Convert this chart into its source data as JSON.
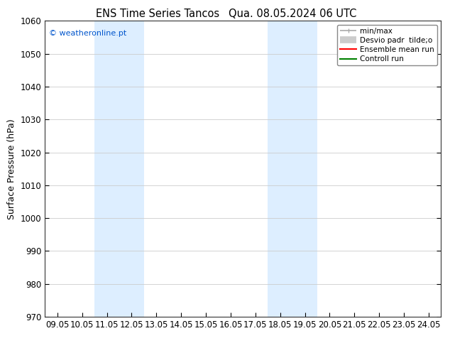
{
  "title_left": "ENS Time Series Tancos",
  "title_right": "Qua. 08.05.2024 06 UTC",
  "ylabel": "Surface Pressure (hPa)",
  "ylim": [
    970,
    1060
  ],
  "yticks": [
    970,
    980,
    990,
    1000,
    1010,
    1020,
    1030,
    1040,
    1050,
    1060
  ],
  "xtick_labels": [
    "09.05",
    "10.05",
    "11.05",
    "12.05",
    "13.05",
    "14.05",
    "15.05",
    "16.05",
    "17.05",
    "18.05",
    "19.05",
    "20.05",
    "21.05",
    "22.05",
    "23.05",
    "24.05"
  ],
  "shaded_bands": [
    {
      "xmin": "11.05",
      "xmax": "13.05"
    },
    {
      "xmin": "18.05",
      "xmax": "20.05"
    }
  ],
  "shaded_color": "#ddeeff",
  "watermark": "© weatheronline.pt",
  "watermark_color": "#0055cc",
  "legend_items": [
    {
      "label": "min/max",
      "color": "#aaaaaa",
      "lw": 1.2
    },
    {
      "label": "Desvio padr  tilde;o",
      "color": "#cccccc",
      "lw": 7
    },
    {
      "label": "Ensemble mean run",
      "color": "red",
      "lw": 1.5
    },
    {
      "label": "Controll run",
      "color": "green",
      "lw": 1.5
    }
  ],
  "background_color": "#ffffff",
  "grid_color": "#cccccc",
  "title_fontsize": 10.5,
  "label_fontsize": 9,
  "tick_fontsize": 8.5
}
